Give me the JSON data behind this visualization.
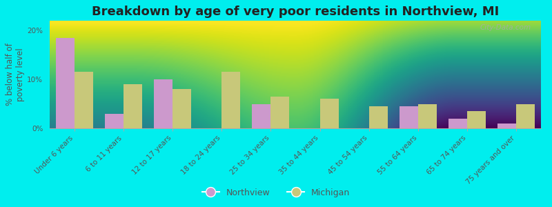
{
  "title": "Breakdown by age of very poor residents in Northview, MI",
  "ylabel": "% below half of\npoverty level",
  "categories": [
    "Under 6 years",
    "6 to 11 years",
    "12 to 17 years",
    "18 to 24 years",
    "25 to 34 years",
    "35 to 44 years",
    "45 to 54 years",
    "55 to 64 years",
    "65 to 74 years",
    "75 years and over"
  ],
  "northview_values": [
    18.5,
    3.0,
    10.0,
    0.0,
    5.0,
    0.0,
    0.0,
    4.5,
    2.0,
    1.0
  ],
  "michigan_values": [
    11.5,
    9.0,
    8.0,
    11.5,
    6.5,
    6.0,
    4.5,
    5.0,
    3.5,
    5.0
  ],
  "northview_color": "#cc99cc",
  "michigan_color": "#c8c87a",
  "background_color": "#00eeee",
  "plot_bg_top": "#f8f8f0",
  "plot_bg_bottom": "#d8e8c0",
  "ylim": [
    0,
    22
  ],
  "yticks": [
    0,
    10,
    20
  ],
  "ytick_labels": [
    "0%",
    "10%",
    "20%"
  ],
  "bar_width": 0.38,
  "watermark": "City-Data.com",
  "title_fontsize": 13,
  "axis_label_fontsize": 8.5,
  "tick_fontsize": 7.5,
  "legend_fontsize": 9
}
